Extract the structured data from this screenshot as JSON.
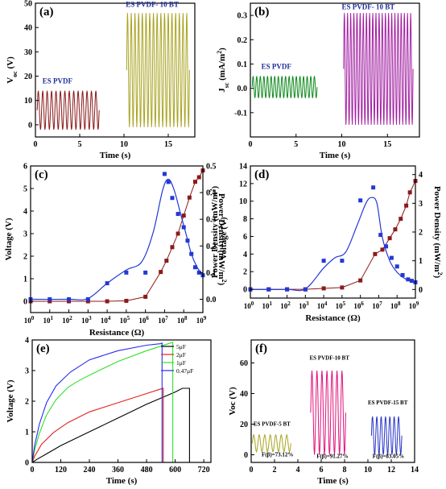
{
  "chart_data": [
    {
      "id": "a",
      "panel_label": "(a)",
      "type": "line",
      "xlabel": "Time (s)",
      "ylabel": "V",
      "ylabel_sub": "oc",
      "ylabel_unit": " (V)",
      "xlim": [
        0,
        18
      ],
      "ylim": [
        -5,
        50
      ],
      "xticks": [
        0,
        5,
        10,
        15
      ],
      "yticks": [
        0,
        10,
        20,
        30,
        40,
        50
      ],
      "series": [
        {
          "name": "ES PVDF",
          "color": "#8b1a1a",
          "t_start": 0.2,
          "t_end": 7.2,
          "cycles": 14,
          "min": -2,
          "max": 14
        },
        {
          "name": "ES PVDF- 10 BT",
          "color": "#a9a321",
          "t_start": 10.3,
          "t_end": 17.4,
          "cycles": 17,
          "min": -1,
          "max": 46
        }
      ],
      "label_colors": [
        "#1f2f9a",
        "#1f2f9a"
      ]
    },
    {
      "id": "b",
      "panel_label": "(b)",
      "type": "line",
      "xlabel": "Time (s)",
      "ylabel": "J",
      "ylabel_sub": "sc",
      "ylabel_unit": " (mA/m",
      "ylabel_sup": "2",
      "ylabel_end": ")",
      "xlim": [
        0,
        18.5
      ],
      "ylim": [
        -0.2,
        0.35
      ],
      "xticks": [
        0,
        5,
        10,
        15
      ],
      "yticks": [
        -0.1,
        0.0,
        0.1,
        0.2,
        0.3
      ],
      "ytick_labels": [
        "-0.1",
        "0.0",
        "0.1",
        "0.2",
        "0.3"
      ],
      "series": [
        {
          "name": "ES PVDF",
          "color": "#0f8a1e",
          "t_start": 0.2,
          "t_end": 7.3,
          "cycles": 18,
          "min": -0.04,
          "max": 0.05
        },
        {
          "name": "ES PVDF- 10 BT",
          "color": "#a21fa2",
          "t_start": 10.2,
          "t_end": 17.8,
          "cycles": 22,
          "min": -0.15,
          "max": 0.31
        }
      ]
    },
    {
      "id": "c",
      "panel_label": "(c)",
      "type": "scatter",
      "xlabel": "Resistance (Ω)",
      "ylabel_left": "Voltage (V)",
      "ylabel_right": "Power Density (mW/m",
      "ylabel_right_sup": "2",
      "ylabel_right_end": ")",
      "x_log_ticks": [
        0,
        1,
        2,
        3,
        4,
        5,
        6,
        7,
        8,
        9
      ],
      "x_base": "10",
      "ylim_left": [
        -0.5,
        6
      ],
      "yticks_left": [
        0,
        1,
        2,
        3,
        4,
        5,
        6
      ],
      "ylim_right": [
        -0.05,
        0.5
      ],
      "yticks_right": [
        0.0,
        0.1,
        0.2,
        0.3,
        0.4,
        0.5
      ],
      "ytick_right_labels": [
        "0.0",
        "0.1",
        "0.2",
        "0.3",
        "0.4",
        "0.5"
      ],
      "series": [
        {
          "name": "Voltage",
          "axis": "left",
          "color": "#8b1a1a",
          "marker": "square",
          "points": [
            [
              0,
              0.0
            ],
            [
              1,
              0.0
            ],
            [
              2,
              0.0
            ],
            [
              3,
              0.0
            ],
            [
              4,
              0.0
            ],
            [
              5,
              0.02
            ],
            [
              6,
              0.2
            ],
            [
              6.8,
              1.3
            ],
            [
              7.1,
              1.8
            ],
            [
              7.4,
              2.4
            ],
            [
              7.7,
              3.0
            ],
            [
              8,
              3.8
            ],
            [
              8.3,
              4.6
            ],
            [
              8.6,
              5.3
            ],
            [
              8.8,
              5.5
            ],
            [
              9,
              5.8
            ]
          ]
        },
        {
          "name": "Power Density",
          "axis": "right",
          "color": "#2338d6",
          "marker": "square",
          "points": [
            [
              0,
              0.0
            ],
            [
              1,
              0.0
            ],
            [
              2,
              0.0
            ],
            [
              3,
              0.0
            ],
            [
              4,
              0.06
            ],
            [
              5,
              0.1
            ],
            [
              6,
              0.1
            ],
            [
              7,
              0.47
            ],
            [
              7.2,
              0.44
            ],
            [
              7.4,
              0.38
            ],
            [
              7.7,
              0.32
            ],
            [
              8,
              0.27
            ],
            [
              8.2,
              0.22
            ],
            [
              8.4,
              0.17
            ],
            [
              8.6,
              0.12
            ],
            [
              8.8,
              0.1
            ],
            [
              9,
              0.09
            ]
          ],
          "curve": [
            [
              0,
              0.0
            ],
            [
              2,
              0.0
            ],
            [
              3,
              0.003
            ],
            [
              4,
              0.06
            ],
            [
              5,
              0.11
            ],
            [
              5.8,
              0.14
            ],
            [
              6.4,
              0.25
            ],
            [
              6.9,
              0.41
            ],
            [
              7.2,
              0.45
            ],
            [
              7.5,
              0.41
            ],
            [
              7.8,
              0.33
            ],
            [
              8.1,
              0.25
            ],
            [
              8.4,
              0.17
            ],
            [
              8.7,
              0.12
            ],
            [
              9,
              0.09
            ]
          ]
        }
      ]
    },
    {
      "id": "d",
      "panel_label": "(d)",
      "type": "scatter",
      "xlabel": "Resistance (Ω)",
      "ylabel_left": "Power Density (mW/m",
      "ylabel_left_sup": "2",
      "ylabel_left_end": ")",
      "ylabel_left2": "Voltage (V)",
      "ylabel_right": "Power Density (mW/m",
      "ylabel_right_sup": "2",
      "ylabel_right_end": ")",
      "x_log_ticks": [
        0,
        1,
        2,
        3,
        4,
        5,
        6,
        7,
        8,
        9
      ],
      "x_base": "10",
      "ylim_left": [
        -1,
        14
      ],
      "yticks_left": [
        0,
        2,
        4,
        6,
        8,
        10,
        12,
        14
      ],
      "ylim_right": [
        -0.3,
        4.3
      ],
      "yticks_right": [
        0,
        1,
        2,
        3,
        4
      ],
      "series": [
        {
          "name": "Voltage",
          "axis": "left",
          "color": "#8b1a1a",
          "marker": "square",
          "points": [
            [
              0,
              0.0
            ],
            [
              1,
              0.0
            ],
            [
              2,
              0.0
            ],
            [
              3,
              0.0
            ],
            [
              4,
              0.1
            ],
            [
              5,
              0.2
            ],
            [
              6,
              1.0
            ],
            [
              6.8,
              4.0
            ],
            [
              7.2,
              4.5
            ],
            [
              7.6,
              5.8
            ],
            [
              7.9,
              6.8
            ],
            [
              8.2,
              8.0
            ],
            [
              8.5,
              9.5
            ],
            [
              8.7,
              11.0
            ],
            [
              9,
              12.3
            ]
          ]
        },
        {
          "name": "Power Density",
          "axis": "right",
          "color": "#2338d6",
          "marker": "square",
          "points": [
            [
              0,
              0.0
            ],
            [
              1,
              0.0
            ],
            [
              2,
              0.0
            ],
            [
              3,
              0.0
            ],
            [
              4,
              1.0
            ],
            [
              5,
              1.0
            ],
            [
              6,
              3.1
            ],
            [
              6.7,
              3.55
            ],
            [
              7.1,
              1.9
            ],
            [
              7.4,
              1.5
            ],
            [
              7.7,
              1.1
            ],
            [
              8,
              0.8
            ],
            [
              8.3,
              0.5
            ],
            [
              8.6,
              0.35
            ],
            [
              8.8,
              0.3
            ],
            [
              9,
              0.25
            ]
          ],
          "curve": [
            [
              0,
              0.0
            ],
            [
              2,
              0.0
            ],
            [
              3,
              0.02
            ],
            [
              4,
              0.75
            ],
            [
              4.6,
              1.1
            ],
            [
              5.2,
              1.3
            ],
            [
              5.8,
              2.2
            ],
            [
              6.3,
              3.0
            ],
            [
              6.6,
              3.2
            ],
            [
              6.9,
              3.0
            ],
            [
              7.2,
              1.8
            ],
            [
              7.6,
              1.0
            ],
            [
              8,
              0.6
            ],
            [
              8.5,
              0.35
            ],
            [
              9,
              0.25
            ]
          ]
        }
      ]
    },
    {
      "id": "e",
      "panel_label": "(e)",
      "type": "line",
      "xlabel": "Time (s)",
      "ylabel": "Voltage (V)",
      "xlim": [
        0,
        750
      ],
      "ylim": [
        0,
        4
      ],
      "xticks": [
        0,
        120,
        240,
        360,
        480,
        600,
        720
      ],
      "yticks": [
        0,
        1,
        2,
        3,
        4
      ],
      "series": [
        {
          "name": "5μF",
          "color": "#000000",
          "points": [
            [
              0,
              0
            ],
            [
              20,
              0.1
            ],
            [
              60,
              0.28
            ],
            [
              120,
              0.55
            ],
            [
              240,
              1.0
            ],
            [
              360,
              1.45
            ],
            [
              480,
              1.9
            ],
            [
              600,
              2.3
            ],
            [
              630,
              2.42
            ],
            [
              660,
              2.42
            ],
            [
              660,
              0
            ]
          ]
        },
        {
          "name": "2μF",
          "color": "#e0211c",
          "points": [
            [
              0,
              0
            ],
            [
              10,
              0.2
            ],
            [
              40,
              0.6
            ],
            [
              90,
              0.98
            ],
            [
              150,
              1.3
            ],
            [
              240,
              1.65
            ],
            [
              360,
              1.95
            ],
            [
              480,
              2.25
            ],
            [
              540,
              2.4
            ],
            [
              550,
              2.42
            ],
            [
              550,
              0
            ]
          ]
        },
        {
          "name": "1μF",
          "color": "#2ee02e",
          "points": [
            [
              0,
              0
            ],
            [
              10,
              0.4
            ],
            [
              30,
              0.95
            ],
            [
              60,
              1.55
            ],
            [
              100,
              2.05
            ],
            [
              150,
              2.45
            ],
            [
              180,
              2.6
            ],
            [
              240,
              2.85
            ],
            [
              360,
              3.3
            ],
            [
              480,
              3.65
            ],
            [
              560,
              3.85
            ],
            [
              590,
              3.92
            ],
            [
              590,
              0
            ]
          ]
        },
        {
          "name": "0.47μF",
          "color": "#2a2af0",
          "points": [
            [
              0,
              0
            ],
            [
              10,
              0.55
            ],
            [
              30,
              1.25
            ],
            [
              60,
              1.95
            ],
            [
              100,
              2.5
            ],
            [
              160,
              2.95
            ],
            [
              240,
              3.35
            ],
            [
              360,
              3.65
            ],
            [
              480,
              3.83
            ],
            [
              540,
              3.88
            ],
            [
              545,
              3.9
            ],
            [
              545,
              0
            ]
          ]
        }
      ]
    },
    {
      "id": "f",
      "panel_label": "(f)",
      "type": "line",
      "xlabel": "Time (s)",
      "ylabel": "Voc (V)",
      "xlim": [
        0,
        14
      ],
      "ylim": [
        -5,
        75
      ],
      "xticks": [
        0,
        2,
        4,
        6,
        8,
        10,
        12,
        14
      ],
      "yticks": [
        0,
        20,
        40,
        60
      ],
      "series": [
        {
          "name": "ES PVDF-5 BT",
          "annotation": "F(β)=73.12%",
          "color": "#a9a321",
          "t_start": 0.1,
          "t_end": 3.4,
          "cycles": 7,
          "min": 2,
          "max": 13
        },
        {
          "name": "ES PVDF-10 BT",
          "annotation": "F(β)=91.27%",
          "color": "#e0107a",
          "t_start": 5.1,
          "t_end": 8.1,
          "cycles": 7,
          "min": 0,
          "max": 55
        },
        {
          "name": "ES PVDF-15 BT",
          "annotation": "F(β)=83.05%",
          "color": "#2a35c8",
          "t_start": 10.3,
          "t_end": 12.9,
          "cycles": 7,
          "min": 0,
          "max": 25
        }
      ]
    }
  ]
}
